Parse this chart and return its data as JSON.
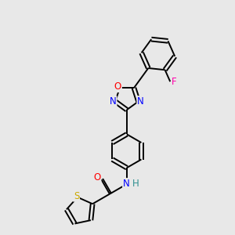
{
  "bg_color": "#e8e8e8",
  "bond_color": "#000000",
  "atom_colors": {
    "O": "#ff0000",
    "N": "#0000ff",
    "S": "#ccaa00",
    "F": "#ff00aa",
    "H": "#2f9090",
    "C": "#000000"
  },
  "figsize": [
    3.0,
    3.0
  ],
  "dpi": 100,
  "lw": 1.4,
  "fs": 8.5
}
